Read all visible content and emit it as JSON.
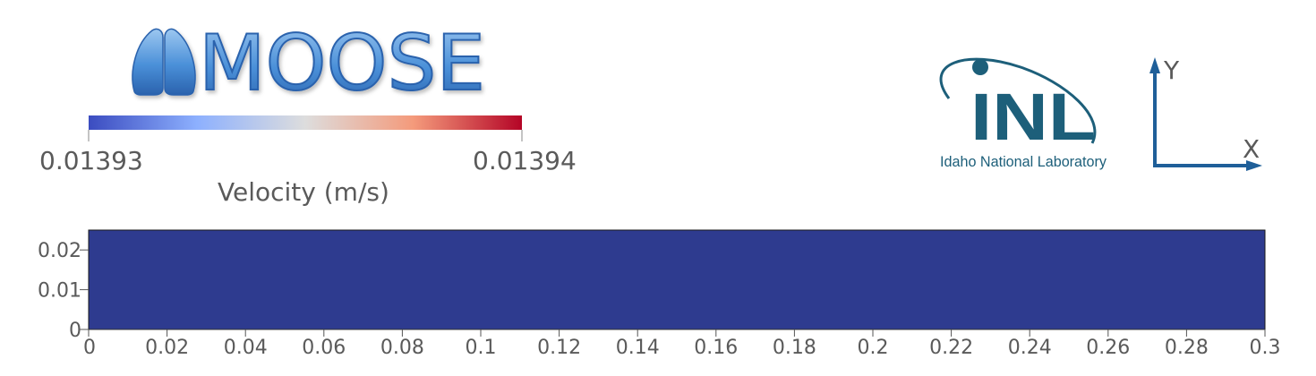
{
  "logos": {
    "moose": {
      "text": "MOOSE"
    },
    "inl": {
      "wordmark": "INL",
      "subtitle": "Idaho National Laboratory"
    }
  },
  "colorbar": {
    "min_label": "0.01393",
    "max_label": "0.01394",
    "title": "Velocity (m/s)",
    "colormap_low": "#3b4cc0",
    "colormap_mid": "#dddddd",
    "colormap_high": "#b40426"
  },
  "axes_triad": {
    "y_label": "Y",
    "x_label": "X",
    "color": "#1f5f99"
  },
  "domain_color": "#2e3b8f",
  "chart_data": {
    "type": "heatmap",
    "title": "",
    "field": "Velocity (m/s)",
    "value_range": [
      0.01393,
      0.01394
    ],
    "x_range": [
      0,
      0.3
    ],
    "y_range": [
      0,
      0.025
    ],
    "x_ticks": [
      "0",
      "0.02",
      "0.04",
      "0.06",
      "0.08",
      "0.1",
      "0.12",
      "0.14",
      "0.16",
      "0.18",
      "0.2",
      "0.22",
      "0.24",
      "0.26",
      "0.28",
      "0.3"
    ],
    "x_tick_values": [
      0,
      0.02,
      0.04,
      0.06,
      0.08,
      0.1,
      0.12,
      0.14,
      0.16,
      0.18,
      0.2,
      0.22,
      0.24,
      0.26,
      0.28,
      0.3
    ],
    "y_ticks": [
      "0",
      "0.01",
      "0.02"
    ],
    "y_tick_values": [
      0,
      0.01,
      0.02
    ]
  }
}
